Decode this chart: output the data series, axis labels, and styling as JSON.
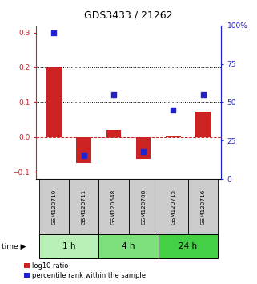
{
  "title": "GDS3433 / 21262",
  "samples": [
    "GSM120710",
    "GSM120711",
    "GSM120648",
    "GSM120708",
    "GSM120715",
    "GSM120716"
  ],
  "log10_ratio": [
    0.2,
    -0.075,
    0.02,
    -0.062,
    0.005,
    0.073
  ],
  "percentile_rank": [
    95,
    15,
    55,
    18,
    45,
    55
  ],
  "time_groups": [
    {
      "label": "1 h",
      "indices": [
        0,
        1
      ],
      "color": "#b8f0b8"
    },
    {
      "label": "4 h",
      "indices": [
        2,
        3
      ],
      "color": "#7de07d"
    },
    {
      "label": "24 h",
      "indices": [
        4,
        5
      ],
      "color": "#44d044"
    }
  ],
  "bar_color": "#cc2222",
  "dot_color": "#2222cc",
  "ylim_left": [
    -0.12,
    0.32
  ],
  "ylim_right": [
    0,
    100
  ],
  "yticks_left": [
    -0.1,
    0.0,
    0.1,
    0.2,
    0.3
  ],
  "yticks_right": [
    0,
    25,
    50,
    75,
    100
  ],
  "dotted_lines": [
    0.1,
    0.2
  ],
  "dashed_zero_color": "#cc2222",
  "bg_color": "#ffffff",
  "sample_box_color": "#cccccc",
  "legend_labels": [
    "log10 ratio",
    "percentile rank within the sample"
  ]
}
